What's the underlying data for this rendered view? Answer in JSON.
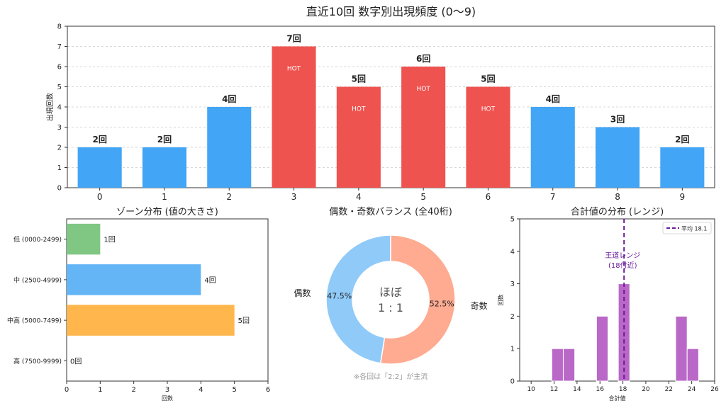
{
  "colors": {
    "blue": "#42a5f5",
    "red": "#ef5350",
    "green": "#81c784",
    "zone_blue": "#64b5f6",
    "orange": "#ffb74d",
    "donut_even": "#90caf9",
    "donut_odd": "#ffab91",
    "purple": "#ba68c8",
    "mean_line": "#6a1b9a",
    "grid": "#cccccc",
    "axis": "#333333",
    "note": "#999999"
  },
  "chart_data": [
    {
      "id": "digit_frequency",
      "type": "bar",
      "title": "直近10回 数字別出現頻度 (0〜9)",
      "xlabel": "",
      "ylabel": "出現回数",
      "categories": [
        "0",
        "1",
        "2",
        "3",
        "4",
        "5",
        "6",
        "7",
        "8",
        "9"
      ],
      "values": [
        2,
        2,
        4,
        7,
        5,
        6,
        5,
        4,
        3,
        2
      ],
      "data_labels": [
        "2回",
        "2回",
        "4回",
        "7回",
        "5回",
        "6回",
        "5回",
        "4回",
        "3回",
        "2回"
      ],
      "hot": [
        false,
        false,
        false,
        true,
        true,
        true,
        true,
        false,
        false,
        false
      ],
      "hot_label": "HOT",
      "ylim": [
        0,
        8
      ],
      "yticks": [
        0,
        1,
        2,
        3,
        4,
        5,
        6,
        7,
        8
      ],
      "grid": true
    },
    {
      "id": "zone_distribution",
      "type": "bar",
      "orientation": "horizontal",
      "title": "ゾーン分布 (値の大きさ)",
      "xlabel": "回数",
      "categories": [
        "低 (0000-2499)",
        "中 (2500-4999)",
        "中高 (5000-7499)",
        "高 (7500-9999)"
      ],
      "values": [
        1,
        4,
        5,
        0
      ],
      "data_labels": [
        "1回",
        "4回",
        "5回",
        "0回"
      ],
      "xlim": [
        0,
        6
      ],
      "xticks": [
        0,
        1,
        2,
        3,
        4,
        5,
        6
      ]
    },
    {
      "id": "parity_balance",
      "type": "pie",
      "style": "donut",
      "title": "偶数・奇数バランス (全40桁)",
      "labels": [
        "偶数",
        "奇数"
      ],
      "values": [
        47.5,
        52.5
      ],
      "pct_labels": [
        "47.5%",
        "52.5%"
      ],
      "center_text": [
        "ほぼ",
        "1 : 1"
      ],
      "note": "※各回は「2:2」が主流"
    },
    {
      "id": "sum_distribution",
      "type": "bar",
      "subtype": "histogram",
      "title": "合計値の分布 (レンジ)",
      "xlabel": "合計値",
      "ylabel": "回数",
      "bins": [
        {
          "from": 11.8,
          "to": 12.8,
          "count": 1
        },
        {
          "from": 12.8,
          "to": 13.8,
          "count": 1
        },
        {
          "from": 15.7,
          "to": 16.7,
          "count": 2
        },
        {
          "from": 17.6,
          "to": 18.6,
          "count": 3
        },
        {
          "from": 22.6,
          "to": 23.6,
          "count": 2
        },
        {
          "from": 23.6,
          "to": 24.6,
          "count": 1
        }
      ],
      "xlim": [
        9,
        26
      ],
      "xticks": [
        10,
        12,
        14,
        16,
        18,
        20,
        22,
        24,
        26
      ],
      "ylim": [
        0,
        5
      ],
      "yticks": [
        0,
        1,
        2,
        3,
        4,
        5
      ],
      "mean": 18.1,
      "legend_label": "平均 18.1",
      "legend_position": "top-right",
      "annotation": [
        "王道レンジ",
        "(18付近)"
      ]
    }
  ]
}
